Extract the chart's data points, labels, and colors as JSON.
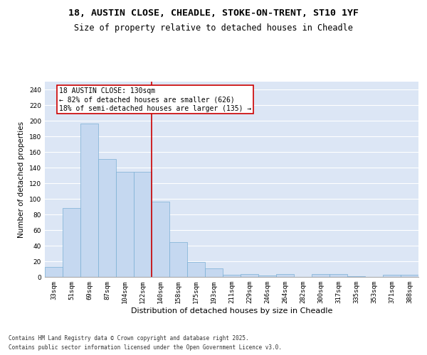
{
  "title1": "18, AUSTIN CLOSE, CHEADLE, STOKE-ON-TRENT, ST10 1YF",
  "title2": "Size of property relative to detached houses in Cheadle",
  "xlabel": "Distribution of detached houses by size in Cheadle",
  "ylabel": "Number of detached properties",
  "categories": [
    "33sqm",
    "51sqm",
    "69sqm",
    "87sqm",
    "104sqm",
    "122sqm",
    "140sqm",
    "158sqm",
    "175sqm",
    "193sqm",
    "211sqm",
    "229sqm",
    "246sqm",
    "264sqm",
    "282sqm",
    "300sqm",
    "317sqm",
    "335sqm",
    "353sqm",
    "371sqm",
    "388sqm"
  ],
  "bar_values": [
    13,
    88,
    196,
    151,
    135,
    135,
    96,
    45,
    19,
    11,
    3,
    4,
    2,
    4,
    0,
    4,
    4,
    1,
    0,
    3,
    3
  ],
  "bar_color": "#c5d8f0",
  "bar_edge_color": "#7bafd4",
  "highlight_line_color": "#cc0000",
  "annotation_text": "18 AUSTIN CLOSE: 130sqm\n← 82% of detached houses are smaller (626)\n18% of semi-detached houses are larger (135) →",
  "annotation_box_edge": "#cc0000",
  "background_color": "#dce6f5",
  "grid_color": "#ffffff",
  "footer1": "Contains HM Land Registry data © Crown copyright and database right 2025.",
  "footer2": "Contains public sector information licensed under the Open Government Licence v3.0.",
  "ylim": [
    0,
    250
  ],
  "yticks": [
    0,
    20,
    40,
    60,
    80,
    100,
    120,
    140,
    160,
    180,
    200,
    220,
    240
  ],
  "title1_fontsize": 9.5,
  "title2_fontsize": 8.5,
  "xlabel_fontsize": 8,
  "ylabel_fontsize": 7.5,
  "tick_fontsize": 6.5,
  "annotation_fontsize": 7,
  "footer_fontsize": 5.5,
  "line_x_index": 6
}
